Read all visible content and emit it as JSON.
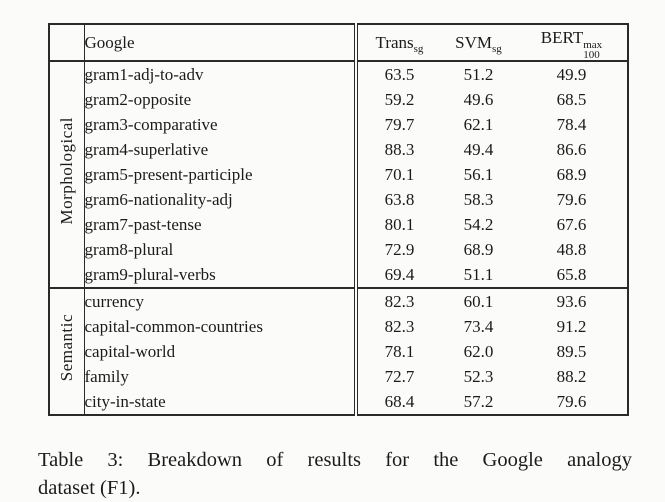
{
  "table": {
    "header": {
      "group": "",
      "dataset": "Google",
      "methods": [
        {
          "base": "Trans",
          "sub": "sg"
        },
        {
          "base": "SVM",
          "sub": "sg"
        },
        {
          "base": "BERT",
          "sup": "max",
          "sub": "100"
        }
      ]
    },
    "sections": [
      {
        "group": "Morphological",
        "rows": [
          {
            "name": "gram1-adj-to-adv",
            "values": [
              "63.5",
              "51.2",
              "49.9"
            ],
            "bold": [
              true,
              false,
              false
            ]
          },
          {
            "name": "gram2-opposite",
            "values": [
              "59.2",
              "49.6",
              "68.5"
            ],
            "bold": [
              false,
              false,
              true
            ]
          },
          {
            "name": "gram3-comparative",
            "values": [
              "79.7",
              "62.1",
              "78.4"
            ],
            "bold": [
              true,
              false,
              false
            ]
          },
          {
            "name": "gram4-superlative",
            "values": [
              "88.3",
              "49.4",
              "86.6"
            ],
            "bold": [
              true,
              false,
              false
            ]
          },
          {
            "name": "gram5-present-participle",
            "values": [
              "70.1",
              "56.1",
              "68.9"
            ],
            "bold": [
              true,
              false,
              false
            ]
          },
          {
            "name": "gram6-nationality-adj",
            "values": [
              "63.8",
              "58.3",
              "79.6"
            ],
            "bold": [
              false,
              false,
              true
            ]
          },
          {
            "name": "gram7-past-tense",
            "values": [
              "80.1",
              "54.2",
              "67.6"
            ],
            "bold": [
              true,
              false,
              false
            ]
          },
          {
            "name": "gram8-plural",
            "values": [
              "72.9",
              "68.9",
              "48.8"
            ],
            "bold": [
              true,
              false,
              false
            ]
          },
          {
            "name": "gram9-plural-verbs",
            "values": [
              "69.4",
              "51.1",
              "65.8"
            ],
            "bold": [
              true,
              false,
              false
            ]
          }
        ]
      },
      {
        "group": "Semantic",
        "rows": [
          {
            "name": "currency",
            "values": [
              "82.3",
              "60.1",
              "93.6"
            ],
            "bold": [
              false,
              false,
              true
            ]
          },
          {
            "name": "capital-common-countries",
            "values": [
              "82.3",
              "73.4",
              "91.2"
            ],
            "bold": [
              false,
              false,
              true
            ]
          },
          {
            "name": "capital-world",
            "values": [
              "78.1",
              "62.0",
              "89.5"
            ],
            "bold": [
              false,
              false,
              true
            ]
          },
          {
            "name": "family",
            "values": [
              "72.7",
              "52.3",
              "88.2"
            ],
            "bold": [
              false,
              false,
              true
            ]
          },
          {
            "name": "city-in-state",
            "values": [
              "68.4",
              "57.2",
              "79.6"
            ],
            "bold": [
              false,
              false,
              true
            ]
          }
        ]
      }
    ]
  },
  "caption": {
    "line1": "Table 3: Breakdown of results for the Google analogy",
    "line2": "dataset (F1)."
  },
  "colors": {
    "text": "#1b1b1b",
    "border": "#2a2a2a",
    "background": "#fbfbfa"
  }
}
